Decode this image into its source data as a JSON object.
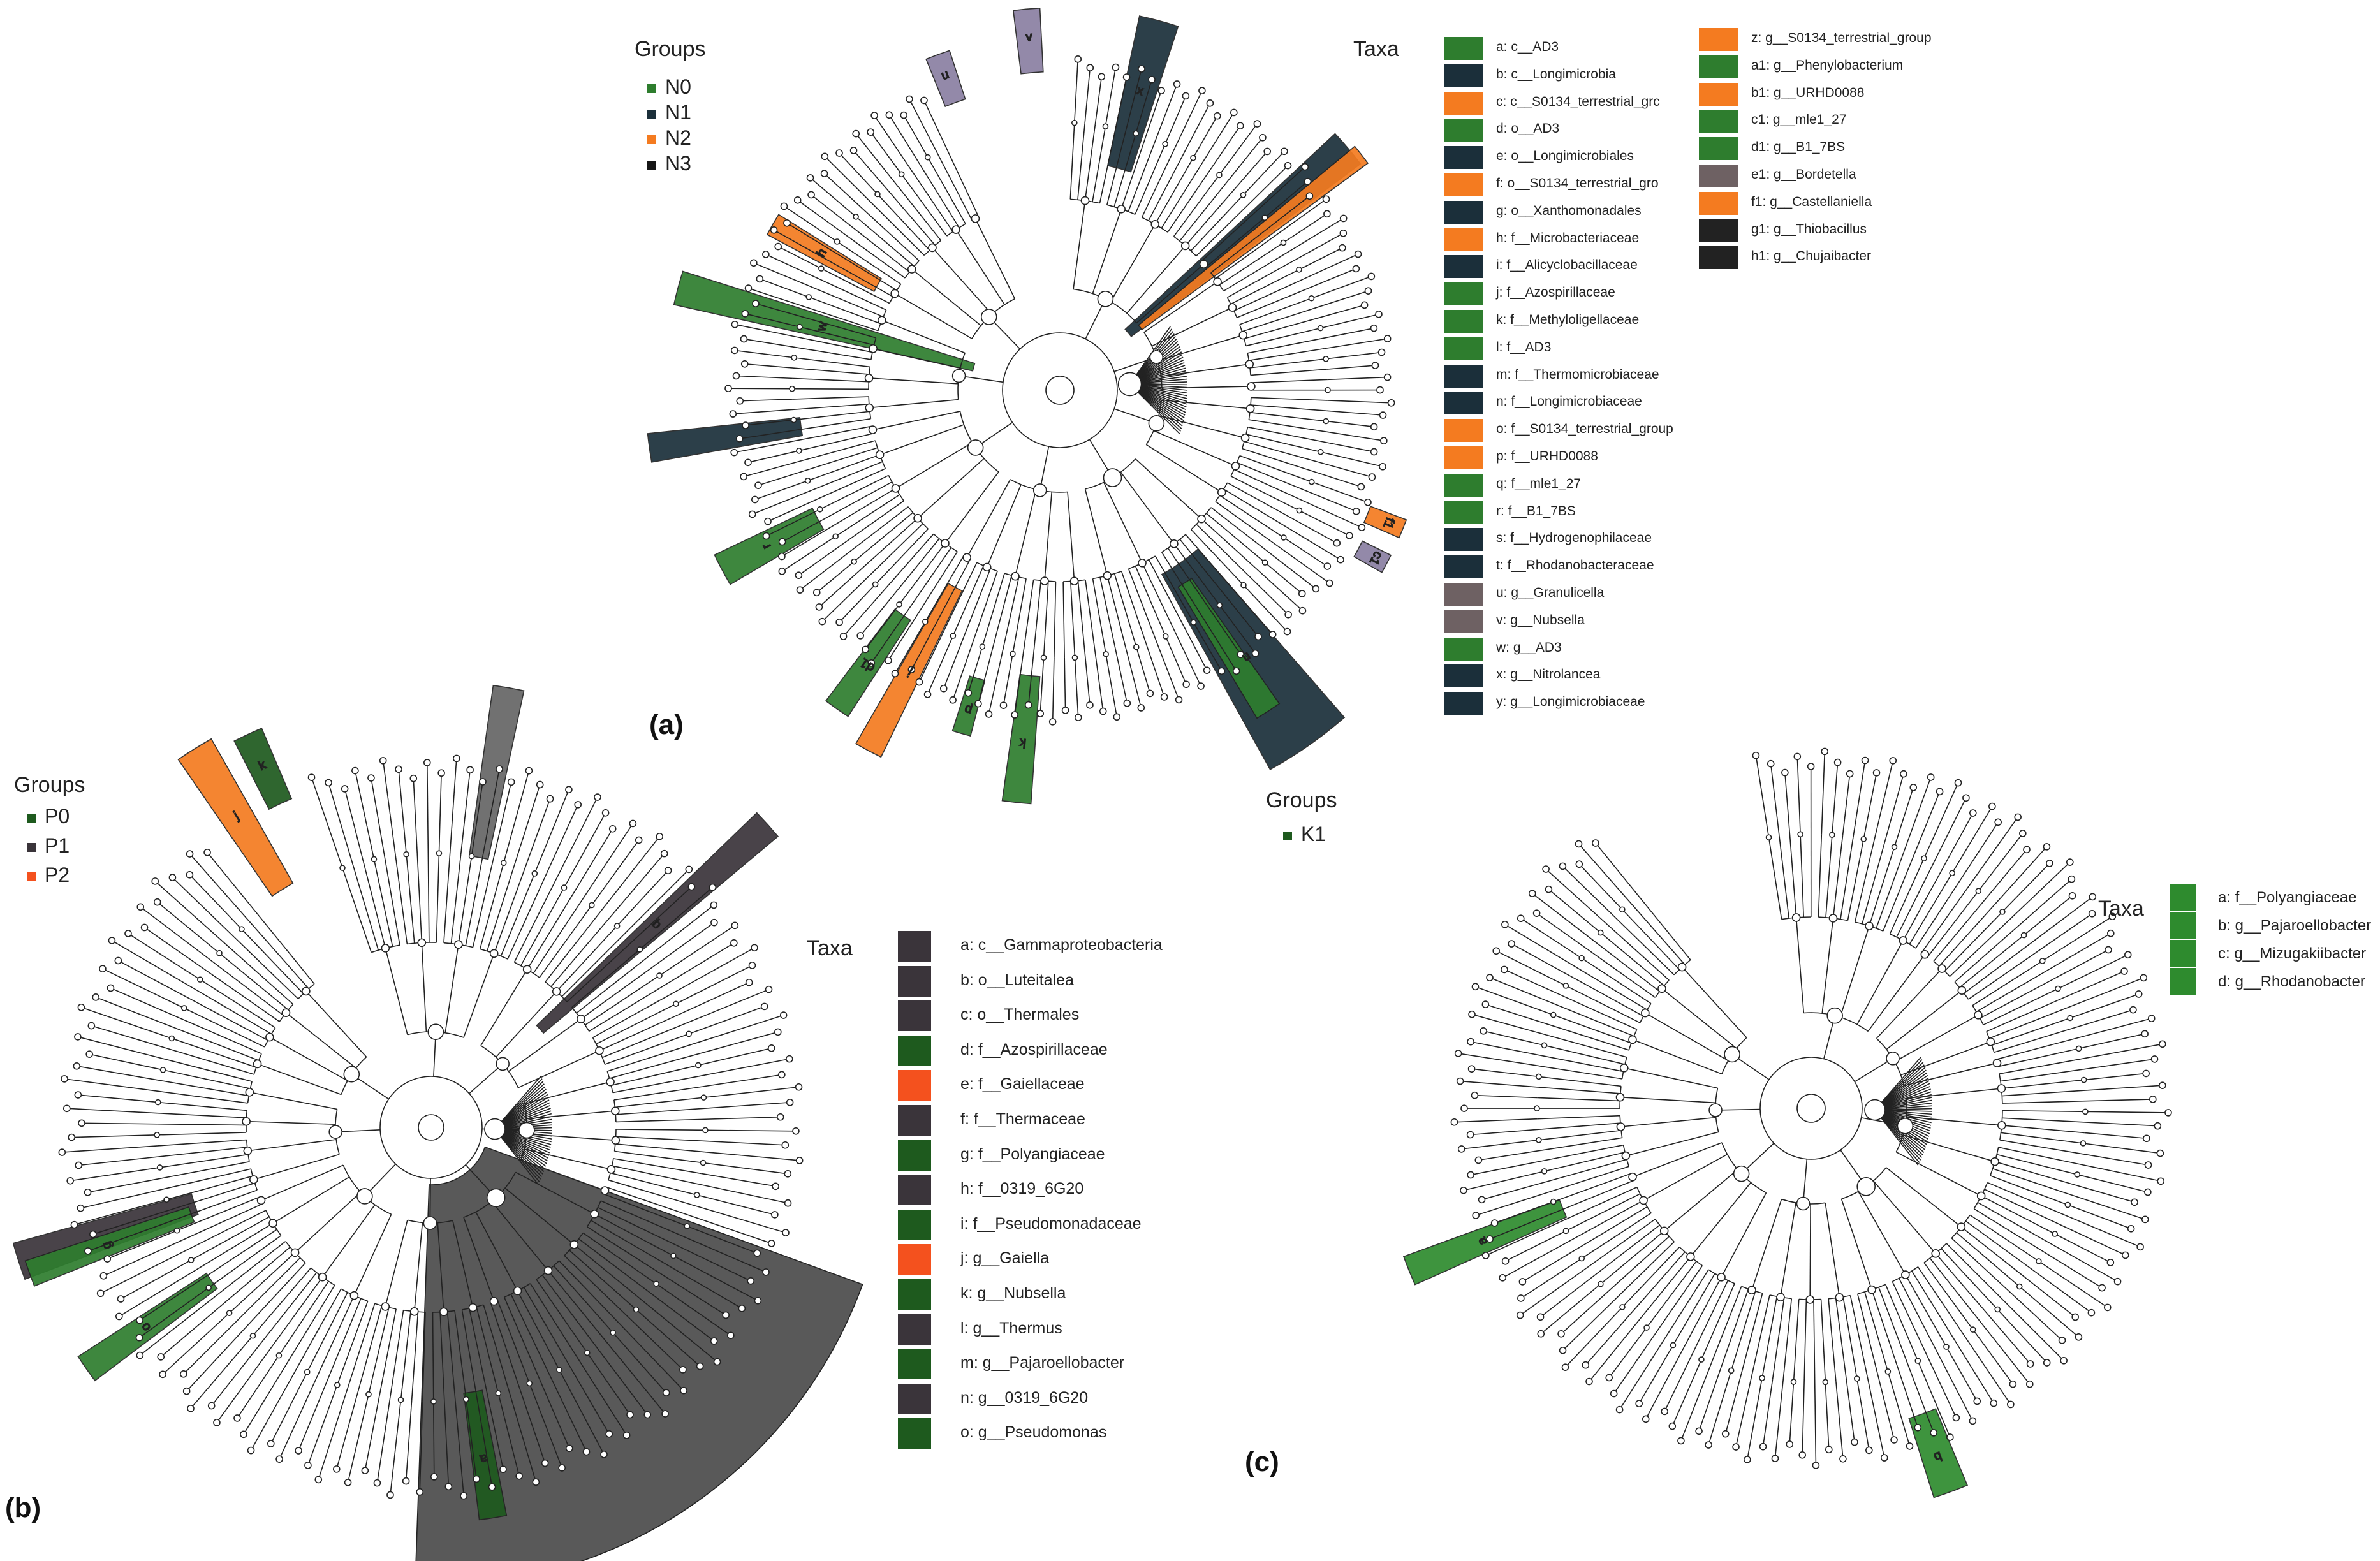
{
  "colors": {
    "N0": "#2e7d2e",
    "N1": "#1b2f3a",
    "N2": "#f47b20",
    "N3": "#161616",
    "P0": "#1e5a1e",
    "P1": "#3a343a",
    "P2": "#f4511e",
    "K1": "#2e8b2e",
    "purple": "#8a7fa2",
    "brown": "#6e6163"
  },
  "panel_a": {
    "label": "(a)",
    "groups_title": "Groups",
    "groups": [
      {
        "name": "N0",
        "color": "#2e7d2e"
      },
      {
        "name": "N1",
        "color": "#1b2f3a"
      },
      {
        "name": "N2",
        "color": "#f47b20"
      },
      {
        "name": "N3",
        "color": "#161616"
      }
    ],
    "taxa_title": "Taxa",
    "taxa_col1": [
      {
        "text": "a: c__AD3",
        "color": "#2e7d2e"
      },
      {
        "text": "b: c__Longimicrobia",
        "color": "#1b2f3a"
      },
      {
        "text": "c: c__S0134_terrestrial_grc",
        "color": "#f47b20"
      },
      {
        "text": "d: o__AD3",
        "color": "#2e7d2e"
      },
      {
        "text": "e: o__Longimicrobiales",
        "color": "#1b2f3a"
      },
      {
        "text": "f: o__S0134_terrestrial_gro",
        "color": "#f47b20"
      },
      {
        "text": "g: o__Xanthomonadales",
        "color": "#1b2f3a"
      },
      {
        "text": "h: f__Microbacteriaceae",
        "color": "#f47b20"
      },
      {
        "text": "i: f__Alicyclobacillaceae",
        "color": "#1b2f3a"
      },
      {
        "text": "j: f__Azospirillaceae",
        "color": "#2e7d2e"
      },
      {
        "text": "k: f__Methyloligellaceae",
        "color": "#2e7d2e"
      },
      {
        "text": "l: f__AD3",
        "color": "#2e7d2e"
      },
      {
        "text": "m: f__Thermomicrobiaceae",
        "color": "#1b2f3a"
      },
      {
        "text": "n: f__Longimicrobiaceae",
        "color": "#1b2f3a"
      },
      {
        "text": "o: f__S0134_terrestrial_group",
        "color": "#f47b20"
      },
      {
        "text": "p: f__URHD0088",
        "color": "#f47b20"
      },
      {
        "text": "q: f__mle1_27",
        "color": "#2e7d2e"
      },
      {
        "text": "r: f__B1_7BS",
        "color": "#2e7d2e"
      },
      {
        "text": "s: f__Hydrogenophilaceae",
        "color": "#1b2f3a"
      },
      {
        "text": "t: f__Rhodanobacteraceae",
        "color": "#1b2f3a"
      },
      {
        "text": "u: g__Granulicella",
        "color": "#6e6163"
      },
      {
        "text": "v: g__Nubsella",
        "color": "#6e6163"
      },
      {
        "text": "w: g__AD3",
        "color": "#2e7d2e"
      },
      {
        "text": "x: g__Nitrolancea",
        "color": "#1b2f3a"
      },
      {
        "text": "y: g__Longimicrobiaceae",
        "color": "#1b2f3a"
      }
    ],
    "taxa_col2": [
      {
        "text": "z: g__S0134_terrestrial_group",
        "color": "#f47b20"
      },
      {
        "text": "a1: g__Phenylobacterium",
        "color": "#2e7d2e"
      },
      {
        "text": "b1: g__URHD0088",
        "color": "#f47b20"
      },
      {
        "text": "c1: g__mle1_27",
        "color": "#2e7d2e"
      },
      {
        "text": "d1: g__B1_7BS",
        "color": "#2e7d2e"
      },
      {
        "text": "e1: g__Bordetella",
        "color": "#6e6163"
      },
      {
        "text": "f1: g__Castellaniella",
        "color": "#f47b20"
      },
      {
        "text": "g1: g__Thiobacillus",
        "color": "#222222"
      },
      {
        "text": "h1: g__Chujaibacter",
        "color": "#222222"
      }
    ],
    "tree_labels": [
      "u",
      "v",
      "x",
      "h",
      "w",
      "f1",
      "c1",
      "n",
      "r",
      "d1",
      "j",
      "p",
      "b1",
      "a1",
      "k"
    ]
  },
  "panel_b": {
    "label": "(b)",
    "groups_title": "Groups",
    "groups": [
      {
        "name": "P0",
        "color": "#1e5a1e"
      },
      {
        "name": "P1",
        "color": "#3a343a"
      },
      {
        "name": "P2",
        "color": "#f4511e"
      }
    ],
    "taxa_title": "Taxa",
    "taxa": [
      {
        "text": "a: c__Gammaproteobacteria",
        "color": "#3a343a"
      },
      {
        "text": "b: o__Luteitalea",
        "color": "#3a343a"
      },
      {
        "text": "c: o__Thermales",
        "color": "#3a343a"
      },
      {
        "text": "d: f__Azospirillaceae",
        "color": "#1e5a1e"
      },
      {
        "text": "e: f__Gaiellaceae",
        "color": "#f4511e"
      },
      {
        "text": "f: f__Thermaceae",
        "color": "#3a343a"
      },
      {
        "text": "g: f__Polyangiaceae",
        "color": "#1e5a1e"
      },
      {
        "text": "h: f__0319_6G20",
        "color": "#3a343a"
      },
      {
        "text": "i: f__Pseudomonadaceae",
        "color": "#1e5a1e"
      },
      {
        "text": "j: g__Gaiella",
        "color": "#f4511e"
      },
      {
        "text": "k: g__Nubsella",
        "color": "#1e5a1e"
      },
      {
        "text": "l: g__Thermus",
        "color": "#3a343a"
      },
      {
        "text": "m: g__Pajaroellobacter",
        "color": "#1e5a1e"
      },
      {
        "text": "n: g__0319_6G20",
        "color": "#3a343a"
      },
      {
        "text": "o: g__Pseudomonas",
        "color": "#1e5a1e"
      }
    ],
    "tree_labels": [
      "k",
      "j",
      "b",
      "g",
      "o",
      "a"
    ]
  },
  "panel_c": {
    "label": "(c)",
    "groups_title": "Groups",
    "groups": [
      {
        "name": "K1",
        "color": "#1e5a1e"
      }
    ],
    "taxa_title": "Taxa",
    "taxa": [
      {
        "text": "a: f__Polyangiaceae",
        "color": "#2e8b2e"
      },
      {
        "text": "b: g__Pajaroellobacter",
        "color": "#2e8b2e"
      },
      {
        "text": "c: g__Mizugakiibacter",
        "color": "#2e8b2e"
      },
      {
        "text": "d: g__Rhodanobacter",
        "color": "#2e8b2e"
      }
    ],
    "tree_labels": [
      "a",
      "b"
    ]
  }
}
